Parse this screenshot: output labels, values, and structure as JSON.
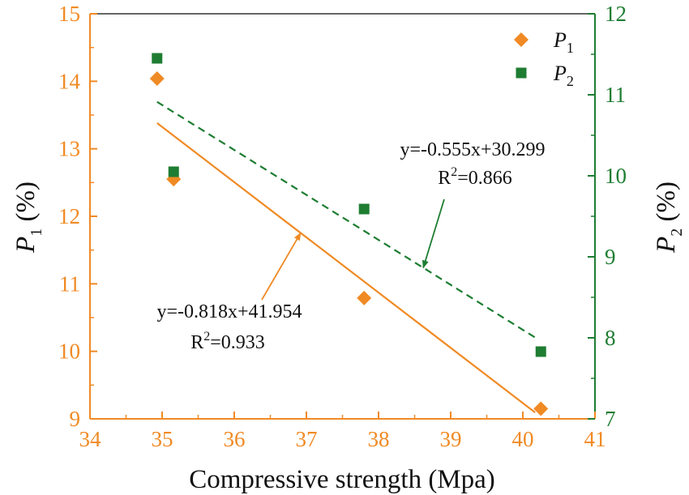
{
  "chart_data": {
    "type": "scatter",
    "xlabel": "Compressive strength (Mpa)",
    "xlim": [
      34,
      41
    ],
    "xticks": [
      "34",
      "35",
      "36",
      "37",
      "38",
      "39",
      "40",
      "41"
    ],
    "ylabel_left": {
      "main": "P",
      "sub": "1",
      "unit": " (%)"
    },
    "ylim_left": [
      9,
      15
    ],
    "yticks_left": [
      "9",
      "10",
      "11",
      "12",
      "13",
      "14",
      "15"
    ],
    "ylabel_right": {
      "main": "P",
      "sub": "2",
      "unit": " (%)"
    },
    "ylim_right": [
      7,
      12
    ],
    "yticks_right": [
      "7",
      "8",
      "9",
      "10",
      "11",
      "12"
    ],
    "grid": false,
    "legend_position": "top-right",
    "colors": {
      "p1": "#F08A24",
      "p2": "#1E7D32",
      "axis": "#1E7D32"
    },
    "series": [
      {
        "name": "P",
        "sub": "1",
        "axis": "left",
        "marker": "diamond",
        "points": [
          {
            "x": 34.93,
            "y": 14.04
          },
          {
            "x": 35.16,
            "y": 12.55
          },
          {
            "x": 37.8,
            "y": 10.79
          },
          {
            "x": 40.25,
            "y": 9.15
          }
        ],
        "fit": {
          "slope": -0.818,
          "intercept": 41.954,
          "x_range": [
            34.93,
            40.17
          ],
          "style": "solid",
          "equation": "y=-0.818x+41.954",
          "r2_prefix": "R",
          "r2_sup": "2",
          "r2_value": "=0.933"
        }
      },
      {
        "name": "P",
        "sub": "2",
        "axis": "right",
        "marker": "square",
        "points": [
          {
            "x": 34.93,
            "y": 11.45
          },
          {
            "x": 35.16,
            "y": 10.05
          },
          {
            "x": 37.8,
            "y": 9.59
          },
          {
            "x": 40.25,
            "y": 7.83
          }
        ],
        "fit": {
          "slope": -0.555,
          "intercept": 30.299,
          "x_range": [
            34.93,
            40.17
          ],
          "style": "dashed",
          "equation": "y=-0.555x+30.299",
          "r2_prefix": "R",
          "r2_sup": "2",
          "r2_value": "=0.866"
        }
      }
    ]
  }
}
